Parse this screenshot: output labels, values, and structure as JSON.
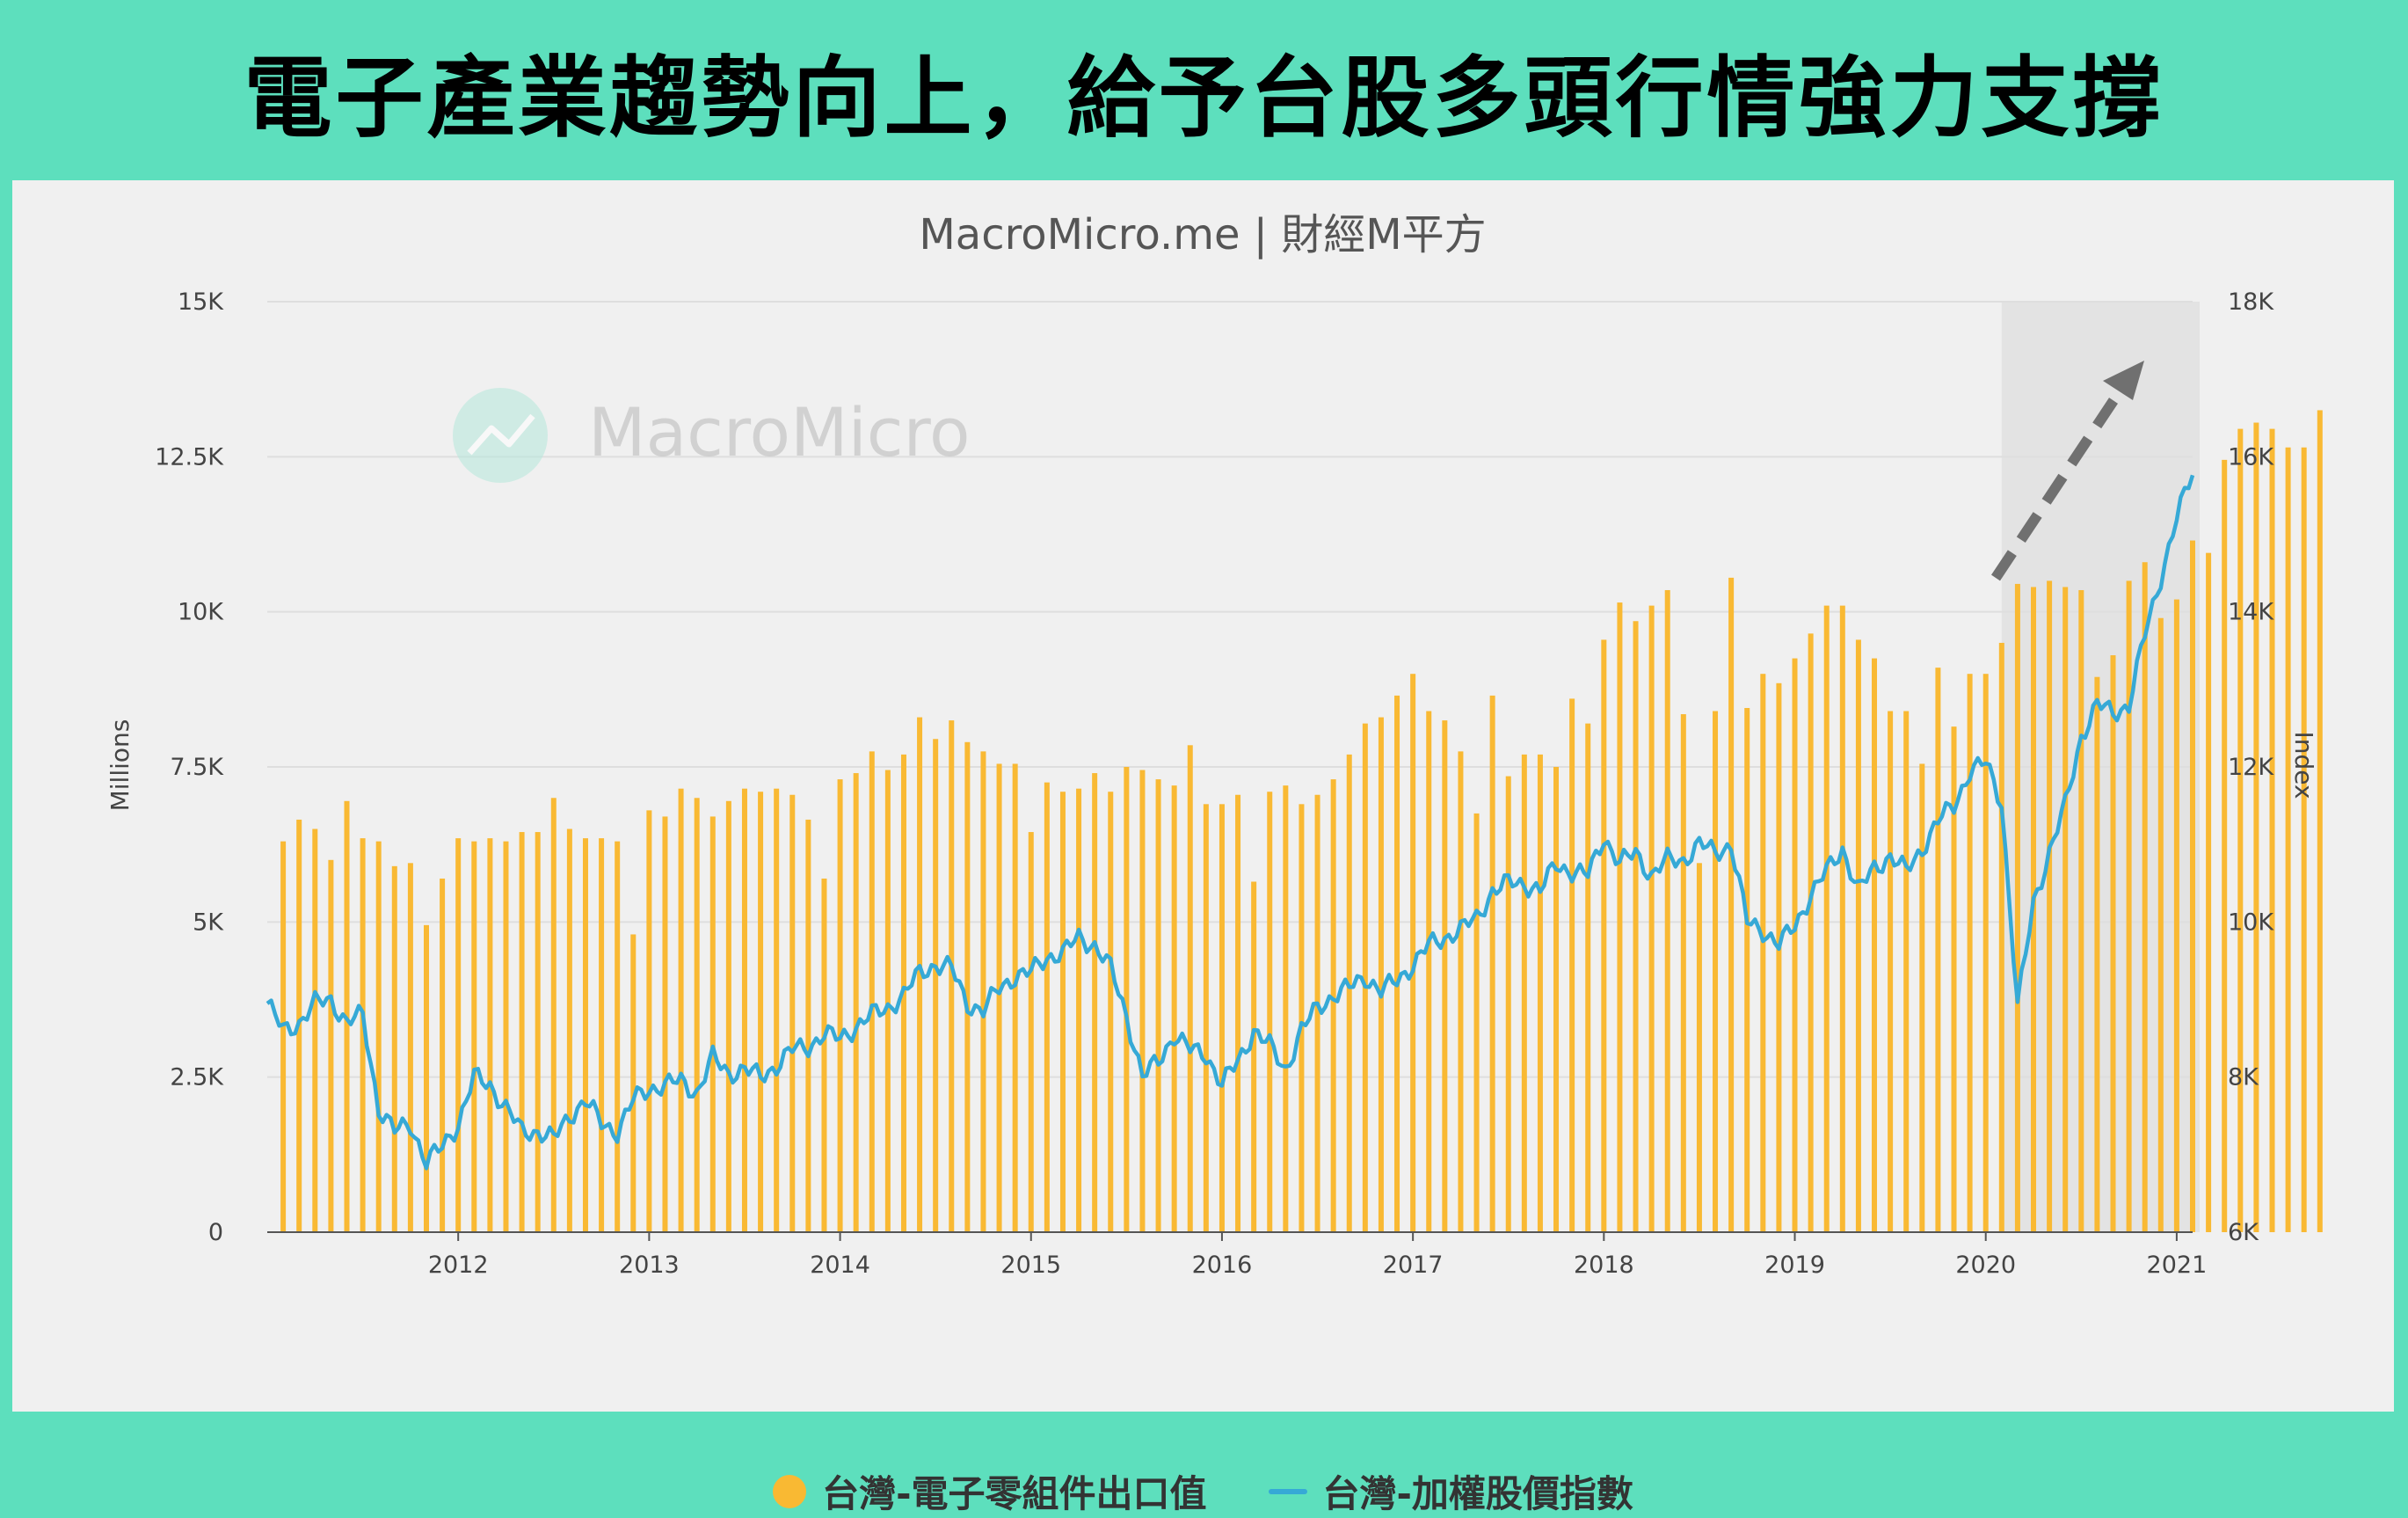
{
  "headline": "電子產業趨勢向上，給予台股多頭行情強力支撐",
  "watermark": "MacroMicro",
  "colors": {
    "bar": "#f9b933",
    "line": "#36a9d6",
    "header_bg": "#5ddfbd",
    "arrow": "#707070"
  },
  "chart_data": {
    "type": "bar",
    "title": "MacroMicro.me | 財經M平方",
    "left_axis": {
      "label": "Millions",
      "range": [
        0,
        15000
      ],
      "ticks": [
        "0",
        "2.5K",
        "5K",
        "7.5K",
        "10K",
        "12.5K",
        "15K"
      ]
    },
    "right_axis": {
      "label": "Index",
      "range": [
        6000,
        18000
      ],
      "ticks": [
        "6K",
        "8K",
        "10K",
        "12K",
        "14K",
        "16K",
        "18K"
      ]
    },
    "x_axis": {
      "range": [
        "2011-01",
        "2021-02"
      ],
      "ticks": [
        "2012",
        "2013",
        "2014",
        "2015",
        "2016",
        "2017",
        "2018",
        "2019",
        "2020",
        "2021"
      ]
    },
    "grid": "horizontal",
    "highlight_region": [
      "2020-02",
      "2021-02"
    ],
    "trend_arrow": "up",
    "series": [
      {
        "name": "台灣-電子零組件出口值",
        "type": "bar",
        "axis": "left",
        "start": "2011-02",
        "values": [
          6300,
          6650,
          6500,
          6000,
          6950,
          6350,
          6300,
          5900,
          5950,
          4950,
          5700,
          6350,
          6300,
          6350,
          6300,
          6450,
          6450,
          7000,
          6500,
          6350,
          6350,
          6300,
          4800,
          6800,
          6700,
          7150,
          7000,
          6700,
          6950,
          7150,
          7100,
          7150,
          7050,
          6650,
          5700,
          7300,
          7400,
          7750,
          7450,
          7700,
          8300,
          7950,
          8250,
          7900,
          7750,
          7550,
          7550,
          6450,
          7250,
          7100,
          7150,
          7400,
          7100,
          7500,
          7450,
          7300,
          7200,
          7850,
          6900,
          6900,
          7050,
          5650,
          7100,
          7200,
          6900,
          7050,
          7300,
          7700,
          8200,
          8300,
          8650,
          9000,
          8400,
          8250,
          7750,
          6750,
          8650,
          7350,
          7700,
          7700,
          7500,
          8600,
          8200,
          9550,
          10150,
          9850,
          10100,
          10350,
          8350,
          5950,
          8400,
          10550,
          8450,
          9000,
          8850,
          9250,
          9650,
          10100,
          10100,
          9550,
          9250,
          8400,
          8400,
          7550,
          9100,
          8150,
          9000,
          9000,
          9500,
          10450,
          10400,
          10500,
          10400,
          10350,
          8950,
          9300,
          10500,
          10800,
          9900,
          10200,
          11150,
          10950,
          12450,
          12950,
          13050,
          12950,
          12650,
          12650,
          13250
        ]
      },
      {
        "name": "台灣-加權股價指數",
        "type": "line",
        "axis": "right",
        "monthly_approx": [
          [
            "2011-01",
            8950
          ],
          [
            "2011-02",
            8600
          ],
          [
            "2011-03",
            8700
          ],
          [
            "2011-04",
            8950
          ],
          [
            "2011-05",
            9000
          ],
          [
            "2011-06",
            8700
          ],
          [
            "2011-07",
            8800
          ],
          [
            "2011-08",
            7600
          ],
          [
            "2011-09",
            7300
          ],
          [
            "2011-10",
            7400
          ],
          [
            "2011-11",
            6900
          ],
          [
            "2011-12",
            7100
          ],
          [
            "2012-01",
            7400
          ],
          [
            "2012-02",
            8000
          ],
          [
            "2012-03",
            7900
          ],
          [
            "2012-04",
            7600
          ],
          [
            "2012-05",
            7300
          ],
          [
            "2012-06",
            7300
          ],
          [
            "2012-07",
            7200
          ],
          [
            "2012-08",
            7500
          ],
          [
            "2012-09",
            7700
          ],
          [
            "2012-10",
            7400
          ],
          [
            "2012-11",
            7300
          ],
          [
            "2012-12",
            7700
          ],
          [
            "2013-01",
            7850
          ],
          [
            "2013-02",
            7900
          ],
          [
            "2013-03",
            7950
          ],
          [
            "2013-04",
            7800
          ],
          [
            "2013-05",
            8250
          ],
          [
            "2013-06",
            8050
          ],
          [
            "2013-07",
            8100
          ],
          [
            "2013-08",
            8000
          ],
          [
            "2013-09",
            8150
          ],
          [
            "2013-10",
            8350
          ],
          [
            "2013-11",
            8400
          ],
          [
            "2013-12",
            8550
          ],
          [
            "2014-01",
            8500
          ],
          [
            "2014-02",
            8650
          ],
          [
            "2014-03",
            8800
          ],
          [
            "2014-04",
            8900
          ],
          [
            "2014-05",
            9050
          ],
          [
            "2014-06",
            9350
          ],
          [
            "2014-07",
            9450
          ],
          [
            "2014-08",
            9400
          ],
          [
            "2014-09",
            8950
          ],
          [
            "2014-10",
            8850
          ],
          [
            "2014-11",
            9150
          ],
          [
            "2014-12",
            9300
          ],
          [
            "2015-01",
            9350
          ],
          [
            "2015-02",
            9550
          ],
          [
            "2015-03",
            9600
          ],
          [
            "2015-04",
            9800
          ],
          [
            "2015-05",
            9700
          ],
          [
            "2015-06",
            9400
          ],
          [
            "2015-07",
            8800
          ],
          [
            "2015-08",
            8000
          ],
          [
            "2015-09",
            8200
          ],
          [
            "2015-10",
            8550
          ],
          [
            "2015-11",
            8350
          ],
          [
            "2015-12",
            8300
          ],
          [
            "2016-01",
            7900
          ],
          [
            "2016-02",
            8200
          ],
          [
            "2016-03",
            8600
          ],
          [
            "2016-04",
            8400
          ],
          [
            "2016-05",
            8100
          ],
          [
            "2016-06",
            8600
          ],
          [
            "2016-07",
            8900
          ],
          [
            "2016-08",
            9050
          ],
          [
            "2016-09",
            9150
          ],
          [
            "2016-10",
            9300
          ],
          [
            "2016-11",
            9100
          ],
          [
            "2016-12",
            9250
          ],
          [
            "2017-01",
            9450
          ],
          [
            "2017-02",
            9700
          ],
          [
            "2017-03",
            9800
          ],
          [
            "2017-04",
            9900
          ],
          [
            "2017-05",
            10050
          ],
          [
            "2017-06",
            10400
          ],
          [
            "2017-07",
            10500
          ],
          [
            "2017-08",
            10500
          ],
          [
            "2017-09",
            10400
          ],
          [
            "2017-10",
            10750
          ],
          [
            "2017-11",
            10650
          ],
          [
            "2017-12",
            10600
          ],
          [
            "2018-01",
            11100
          ],
          [
            "2018-02",
            10750
          ],
          [
            "2018-03",
            10900
          ],
          [
            "2018-04",
            10600
          ],
          [
            "2018-05",
            10800
          ],
          [
            "2018-06",
            10800
          ],
          [
            "2018-07",
            11000
          ],
          [
            "2018-08",
            10900
          ],
          [
            "2018-09",
            11000
          ],
          [
            "2018-10",
            10000
          ],
          [
            "2018-11",
            9900
          ],
          [
            "2018-12",
            9700
          ],
          [
            "2019-01",
            9950
          ],
          [
            "2019-02",
            10350
          ],
          [
            "2019-03",
            10650
          ],
          [
            "2019-04",
            10950
          ],
          [
            "2019-05",
            10400
          ],
          [
            "2019-06",
            10700
          ],
          [
            "2019-07",
            10850
          ],
          [
            "2019-08",
            10650
          ],
          [
            "2019-09",
            10950
          ],
          [
            "2019-10",
            11300
          ],
          [
            "2019-11",
            11500
          ],
          [
            "2019-12",
            11950
          ],
          [
            "2020-01",
            12050
          ],
          [
            "2020-02",
            11550
          ],
          [
            "2020-03",
            8900
          ],
          [
            "2020-04",
            10250
          ],
          [
            "2020-05",
            10900
          ],
          [
            "2020-06",
            11500
          ],
          [
            "2020-07",
            12400
          ],
          [
            "2020-08",
            12800
          ],
          [
            "2020-09",
            12700
          ],
          [
            "2020-10",
            12800
          ],
          [
            "2020-11",
            13700
          ],
          [
            "2020-12",
            14450
          ],
          [
            "2021-01",
            15200
          ],
          [
            "2021-02",
            15800
          ]
        ]
      }
    ]
  }
}
